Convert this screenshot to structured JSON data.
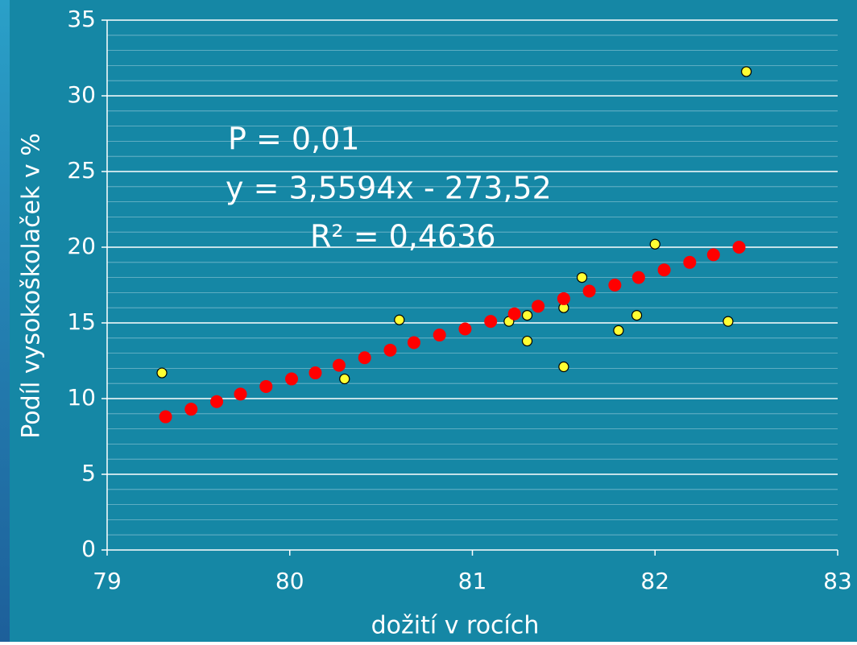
{
  "chart_data": {
    "type": "scatter",
    "x_label": "dožití v rocích",
    "y_label": "Podíl vysokoškolaček v %",
    "annotations": [
      "P = 0,01",
      "y = 3,5594x - 273,52",
      "R² = 0,4636"
    ],
    "xlim": [
      79,
      83
    ],
    "xticks": [
      79,
      80,
      81,
      82,
      83
    ],
    "ylim": [
      0,
      35
    ],
    "yticks": [
      0,
      5,
      10,
      15,
      20,
      25,
      30,
      35
    ],
    "yminorticks": [
      1,
      2,
      3,
      4,
      6,
      7,
      8,
      9,
      11,
      12,
      13,
      14,
      16,
      17,
      18,
      19,
      21,
      22,
      23,
      24,
      26,
      27,
      28,
      29,
      31,
      32,
      33,
      34
    ],
    "grid": true,
    "series": [
      {
        "color": "#ffff33",
        "x": [
          79.3,
          80.3,
          80.6,
          81.2,
          81.3,
          81.3,
          81.5,
          81.5,
          81.6,
          81.8,
          81.9,
          82.0,
          82.4,
          82.5
        ],
        "values": [
          11.7,
          11.3,
          15.2,
          15.1,
          15.5,
          13.8,
          16.0,
          12.1,
          18.0,
          14.5,
          15.5,
          20.2,
          15.1,
          31.6
        ]
      },
      {
        "color": "#ff0000",
        "x": [
          79.32,
          79.46,
          79.6,
          79.73,
          79.87,
          80.01,
          80.14,
          80.27,
          80.41,
          80.55,
          80.68,
          80.82,
          80.96,
          81.1,
          81.23,
          81.36,
          81.5,
          81.64,
          81.78,
          81.91,
          82.05,
          82.19,
          82.32,
          82.46
        ],
        "values": [
          8.8,
          9.3,
          9.8,
          10.3,
          10.8,
          11.3,
          11.7,
          12.2,
          12.7,
          13.2,
          13.7,
          14.2,
          14.6,
          15.1,
          15.6,
          16.1,
          16.6,
          17.1,
          17.5,
          18.0,
          18.5,
          19.0,
          19.5,
          20.0
        ]
      }
    ]
  }
}
